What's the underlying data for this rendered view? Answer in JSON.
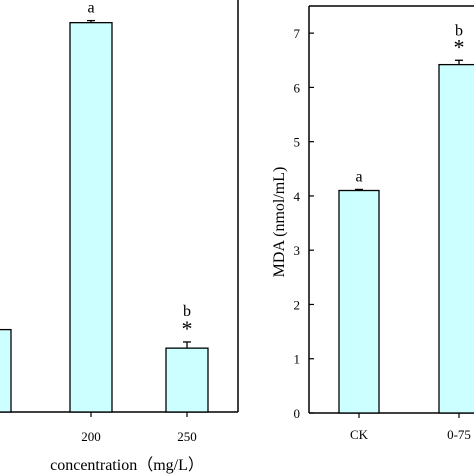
{
  "colors": {
    "bar_fill": "#ccffff",
    "stroke": "#000000",
    "background": "#ffffff"
  },
  "chart_data": [
    {
      "type": "bar",
      "title": "",
      "xlabel": "concentration（mg/L）",
      "ylabel": "",
      "categories": [
        "",
        "200",
        "250"
      ],
      "values": [
        2.0,
        9.45,
        1.55
      ],
      "errors": [
        0.0,
        0.05,
        0.15
      ],
      "letters": [
        "",
        "a",
        "b"
      ],
      "significance": [
        "",
        "",
        "*"
      ],
      "ylim": [
        0,
        10
      ],
      "grid": false
    },
    {
      "type": "bar",
      "title": "",
      "xlabel": "",
      "ylabel": "MDA (nmol/mL)",
      "yticks": [
        "0",
        "1",
        "2",
        "3",
        "4",
        "5",
        "6",
        "7"
      ],
      "categories": [
        "CK",
        "0-75"
      ],
      "values": [
        4.1,
        6.42
      ],
      "errors": [
        0.02,
        0.08
      ],
      "letters": [
        "a",
        "b"
      ],
      "significance": [
        "",
        "*"
      ],
      "ylim": [
        0,
        7.5
      ],
      "grid": false
    }
  ]
}
